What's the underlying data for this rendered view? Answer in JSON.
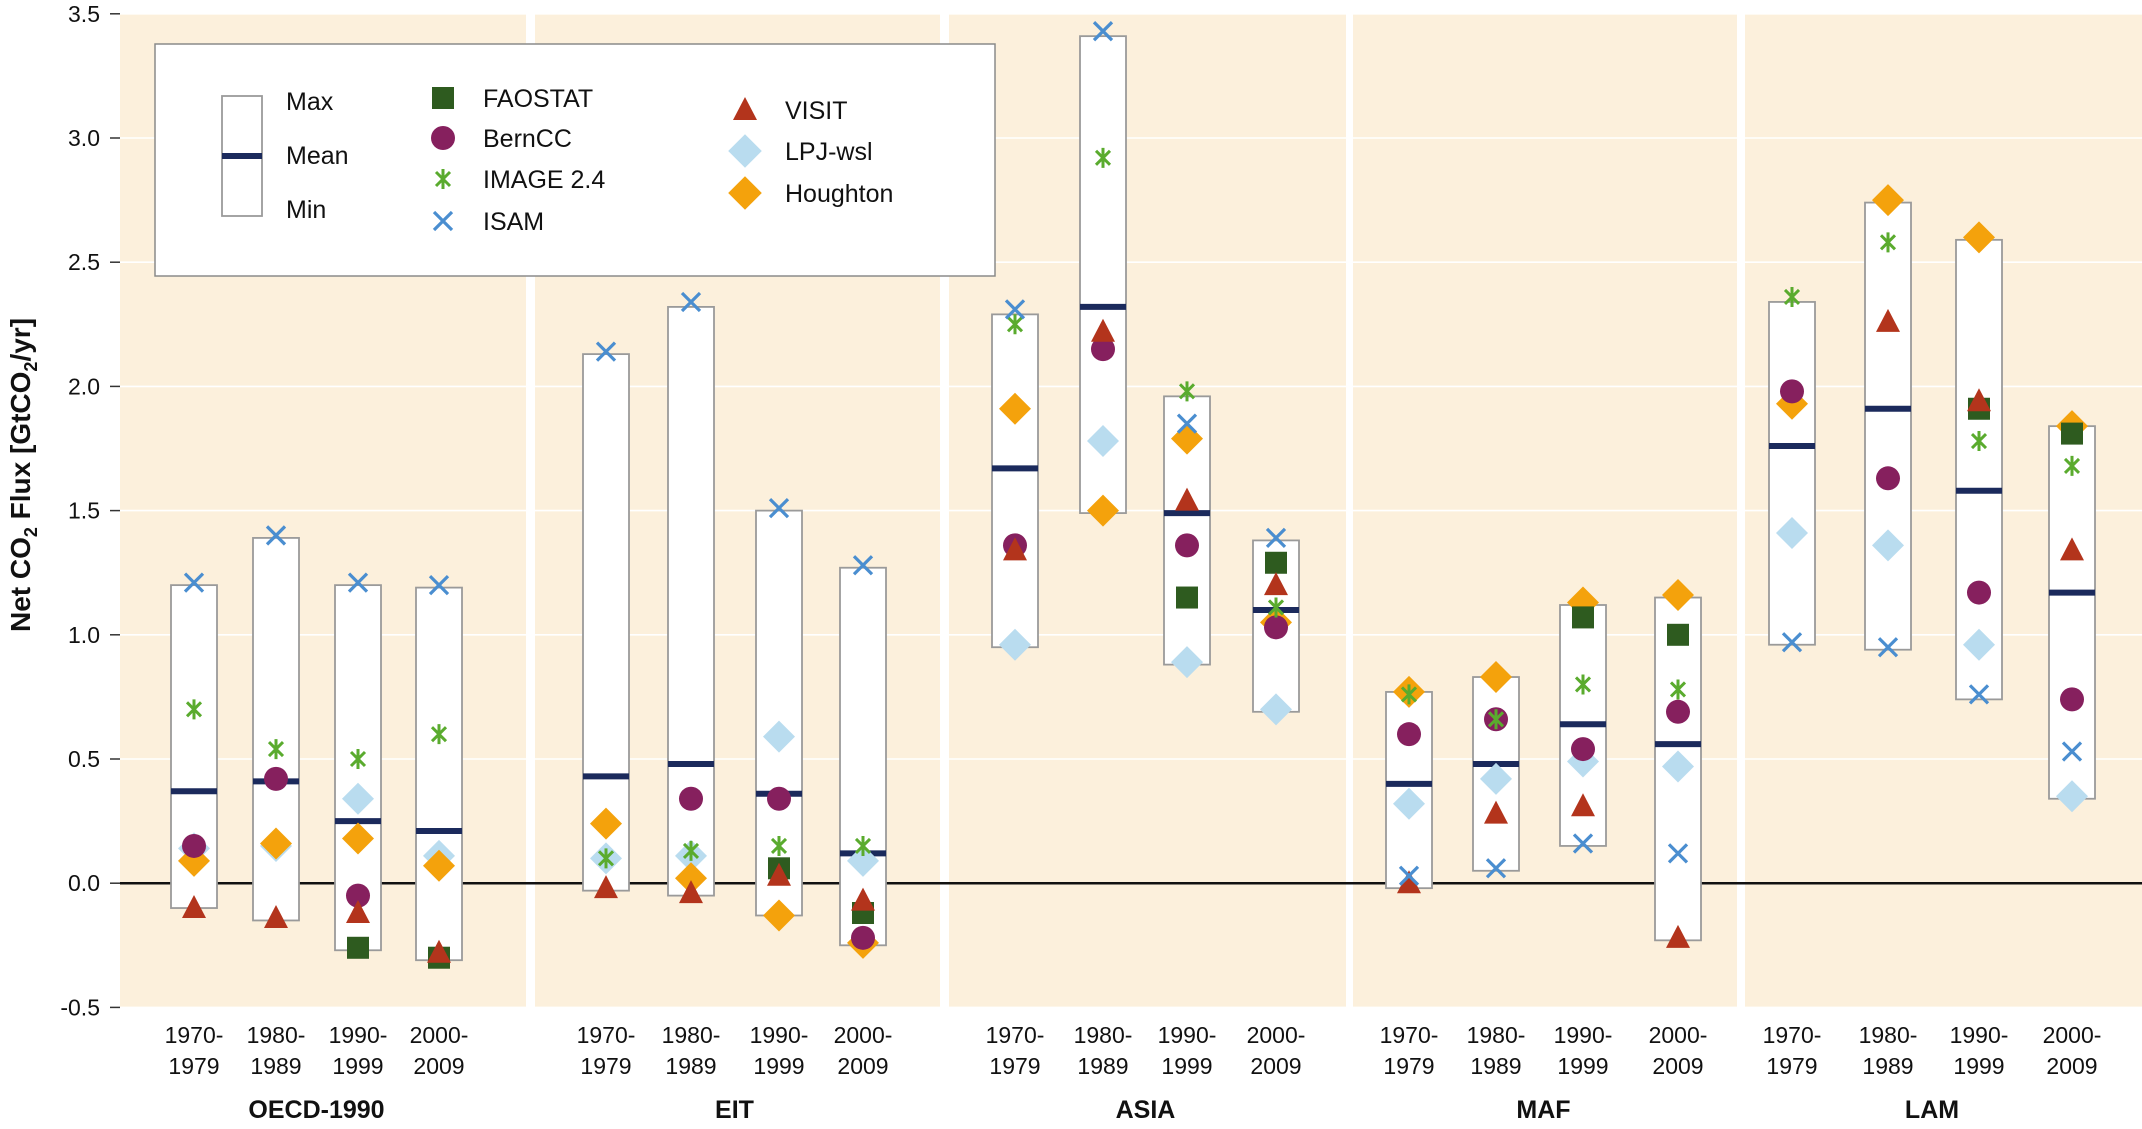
{
  "chart_data": {
    "type": "scatter",
    "title": "",
    "ylabel": "Net CO2 Flux [GtCO2/yr]",
    "ylabel_parts": {
      "before": "Net CO",
      "sub": "2",
      "middle": " Flux [GtCO",
      "sub2": "2",
      "after": "/yr]"
    },
    "ylim": [
      -0.5,
      3.5
    ],
    "yticks": [
      "-0.5",
      "0.0",
      "0.5",
      "1.0",
      "1.5",
      "2.0",
      "2.5",
      "3.0",
      "3.5"
    ],
    "grid": true,
    "legend_position": "top-left",
    "categories": [
      [
        "1970-",
        "1979"
      ],
      [
        "1980-",
        "1989"
      ],
      [
        "1990-",
        "1999"
      ],
      [
        "2000-",
        "2009"
      ]
    ],
    "colors": {
      "panel_bg": "#fcf0dc",
      "mean": "#1b2a5c",
      "FAOSTAT": "#2e5b1f",
      "BernCC": "#86205e",
      "IMAGE 2.4": "#5aab2e",
      "ISAM": "#4a8ed0",
      "VISIT": "#b3341c",
      "LPJ-wsl": "#b9dcef",
      "Houghton": "#f4a20c"
    },
    "legend": {
      "range_labels": {
        "max": "Max",
        "mean": "Mean",
        "min": "Min"
      },
      "series": [
        {
          "name": "FAOSTAT",
          "marker": "square"
        },
        {
          "name": "BernCC",
          "marker": "circle"
        },
        {
          "name": "IMAGE 2.4",
          "marker": "asterisk"
        },
        {
          "name": "ISAM",
          "marker": "x"
        },
        {
          "name": "VISIT",
          "marker": "triangle"
        },
        {
          "name": "LPJ-wsl",
          "marker": "diamond"
        },
        {
          "name": "Houghton",
          "marker": "diamond"
        }
      ]
    },
    "regions": [
      {
        "name": "OECD-1990",
        "ranges": [
          {
            "min": -0.1,
            "max": 1.2,
            "mean": 0.37
          },
          {
            "min": -0.15,
            "max": 1.39,
            "mean": 0.41
          },
          {
            "min": -0.27,
            "max": 1.2,
            "mean": 0.25
          },
          {
            "min": -0.31,
            "max": 1.19,
            "mean": 0.21
          }
        ],
        "series": {
          "FAOSTAT": [
            null,
            null,
            -0.26,
            -0.3
          ],
          "BernCC": [
            0.15,
            0.42,
            -0.05,
            null
          ],
          "IMAGE 2.4": [
            0.7,
            0.54,
            0.5,
            0.6
          ],
          "ISAM": [
            1.21,
            1.4,
            1.21,
            1.2
          ],
          "VISIT": [
            -0.1,
            -0.14,
            -0.12,
            -0.28
          ],
          "LPJ-wsl": [
            0.14,
            0.15,
            0.34,
            0.11
          ],
          "Houghton": [
            0.09,
            0.16,
            0.18,
            0.07
          ]
        }
      },
      {
        "name": "EIT",
        "ranges": [
          {
            "min": -0.03,
            "max": 2.13,
            "mean": 0.43
          },
          {
            "min": -0.05,
            "max": 2.32,
            "mean": 0.48
          },
          {
            "min": -0.13,
            "max": 1.5,
            "mean": 0.36
          },
          {
            "min": -0.25,
            "max": 1.27,
            "mean": 0.12
          }
        ],
        "series": {
          "FAOSTAT": [
            null,
            null,
            0.06,
            -0.12
          ],
          "BernCC": [
            null,
            0.34,
            0.34,
            -0.22
          ],
          "IMAGE 2.4": [
            0.1,
            0.13,
            0.15,
            0.15
          ],
          "ISAM": [
            2.14,
            2.34,
            1.51,
            1.28
          ],
          "VISIT": [
            -0.02,
            -0.04,
            0.03,
            -0.07
          ],
          "LPJ-wsl": [
            0.1,
            0.11,
            0.59,
            0.09
          ],
          "Houghton": [
            0.24,
            0.02,
            -0.13,
            -0.24
          ]
        }
      },
      {
        "name": "ASIA",
        "ranges": [
          {
            "min": 0.95,
            "max": 2.29,
            "mean": 1.67
          },
          {
            "min": 1.49,
            "max": 3.41,
            "mean": 2.32
          },
          {
            "min": 0.88,
            "max": 1.96,
            "mean": 1.49
          },
          {
            "min": 0.69,
            "max": 1.38,
            "mean": 1.1
          }
        ],
        "series": {
          "FAOSTAT": [
            null,
            null,
            1.15,
            1.29
          ],
          "BernCC": [
            1.36,
            2.15,
            1.36,
            1.03
          ],
          "IMAGE 2.4": [
            2.25,
            2.92,
            1.98,
            1.11
          ],
          "ISAM": [
            2.31,
            3.43,
            1.85,
            1.39
          ],
          "VISIT": [
            1.34,
            2.22,
            1.54,
            1.2
          ],
          "LPJ-wsl": [
            0.96,
            1.78,
            0.89,
            0.7
          ],
          "Houghton": [
            1.91,
            1.5,
            1.79,
            1.05
          ]
        }
      },
      {
        "name": "MAF",
        "ranges": [
          {
            "min": -0.02,
            "max": 0.77,
            "mean": 0.4
          },
          {
            "min": 0.05,
            "max": 0.83,
            "mean": 0.48
          },
          {
            "min": 0.15,
            "max": 1.12,
            "mean": 0.64
          },
          {
            "min": -0.23,
            "max": 1.15,
            "mean": 0.56
          }
        ],
        "series": {
          "FAOSTAT": [
            null,
            null,
            1.07,
            1.0
          ],
          "BernCC": [
            0.6,
            0.66,
            0.54,
            0.69
          ],
          "IMAGE 2.4": [
            0.76,
            0.66,
            0.8,
            0.78
          ],
          "ISAM": [
            0.03,
            0.06,
            0.16,
            0.12
          ],
          "VISIT": [
            0.0,
            0.28,
            0.31,
            -0.22
          ],
          "LPJ-wsl": [
            0.32,
            0.42,
            0.49,
            0.47
          ],
          "Houghton": [
            0.77,
            0.83,
            1.13,
            1.16
          ]
        }
      },
      {
        "name": "LAM",
        "ranges": [
          {
            "min": 0.96,
            "max": 2.34,
            "mean": 1.76
          },
          {
            "min": 0.94,
            "max": 2.74,
            "mean": 1.91
          },
          {
            "min": 0.74,
            "max": 2.59,
            "mean": 1.58
          },
          {
            "min": 0.34,
            "max": 1.84,
            "mean": 1.17
          }
        ],
        "series": {
          "FAOSTAT": [
            null,
            null,
            1.91,
            1.81
          ],
          "BernCC": [
            1.98,
            1.63,
            1.17,
            0.74
          ],
          "IMAGE 2.4": [
            2.36,
            2.58,
            1.78,
            1.68
          ],
          "ISAM": [
            0.97,
            0.95,
            0.76,
            0.53
          ],
          "VISIT": [
            null,
            2.26,
            1.94,
            1.34
          ],
          "LPJ-wsl": [
            1.41,
            1.36,
            0.96,
            0.35
          ],
          "Houghton": [
            1.93,
            2.75,
            2.6,
            1.84
          ]
        }
      }
    ]
  }
}
